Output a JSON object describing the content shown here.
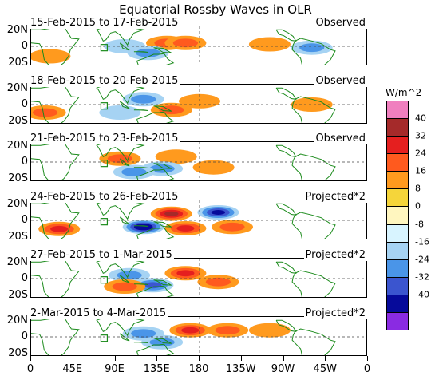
{
  "title": "Equatorial Rossby Waves in OLR",
  "units": "W/m^2",
  "panels": [
    {
      "date_label": "15-Feb-2015 to 17-Feb-2015",
      "type_label": "Observed"
    },
    {
      "date_label": "18-Feb-2015 to 20-Feb-2015",
      "type_label": "Observed"
    },
    {
      "date_label": "21-Feb-2015 to 23-Feb-2015",
      "type_label": "Observed"
    },
    {
      "date_label": "24-Feb-2015 to 26-Feb-2015",
      "type_label": "Projected*2"
    },
    {
      "date_label": "27-Feb-2015 to 1-Mar-2015",
      "type_label": "Projected*2"
    },
    {
      "date_label": "2-Mar-2015 to 4-Mar-2015",
      "type_label": "Projected*2"
    }
  ],
  "lat_labels": [
    "20N",
    "0",
    "20S"
  ],
  "lon_labels": [
    "0",
    "45E",
    "90E",
    "135E",
    "180",
    "135W",
    "90W",
    "45W",
    "0"
  ],
  "colorbar": {
    "labels": [
      "40",
      "32",
      "24",
      "16",
      "8",
      "0",
      "-8",
      "-16",
      "-24",
      "-32",
      "-40"
    ],
    "colors": [
      "#f07fbf",
      "#a52a2a",
      "#e51f1f",
      "#ff5a1e",
      "#ff9a1e",
      "#f5d53a",
      "#fff6bf",
      "#d8f4ff",
      "#a6d3f3",
      "#4a95e8",
      "#3b55cf",
      "#060a9a",
      "#8a2be2"
    ]
  },
  "chart_data": {
    "type": "heatmap",
    "title": "Equatorial Rossby Waves in OLR",
    "x_ticks": [
      "0",
      "45E",
      "90E",
      "135E",
      "180",
      "135W",
      "90W",
      "45W",
      "0"
    ],
    "y_ticks": [
      "20N",
      "0",
      "20S"
    ],
    "colorbar_units": "W/m^2",
    "colorbar_levels": [
      40,
      32,
      24,
      16,
      8,
      0,
      -8,
      -16,
      -24,
      -32,
      -40
    ],
    "panels": [
      {
        "period": "15-Feb-2015 to 17-Feb-2015",
        "kind": "Observed",
        "anomalies": [
          {
            "lon": 145,
            "lat": 5,
            "value": 20
          },
          {
            "lon": 165,
            "lat": 5,
            "value": 16
          },
          {
            "lon": 100,
            "lat": 0,
            "value": -12
          },
          {
            "lon": 125,
            "lat": -10,
            "value": -20
          },
          {
            "lon": 20,
            "lat": -15,
            "value": 12
          },
          {
            "lon": 300,
            "lat": -2,
            "value": -16
          },
          {
            "lon": 255,
            "lat": 3,
            "value": 8
          }
        ]
      },
      {
        "period": "18-Feb-2015 to 20-Feb-2015",
        "kind": "Observed",
        "anomalies": [
          {
            "lon": 150,
            "lat": -8,
            "value": 16
          },
          {
            "lon": 120,
            "lat": 8,
            "value": -16
          },
          {
            "lon": 95,
            "lat": -12,
            "value": -12
          },
          {
            "lon": 180,
            "lat": 5,
            "value": 8
          },
          {
            "lon": 300,
            "lat": 0,
            "value": 12
          },
          {
            "lon": 15,
            "lat": -12,
            "value": 16
          }
        ]
      },
      {
        "period": "21-Feb-2015 to 23-Feb-2015",
        "kind": "Observed",
        "anomalies": [
          {
            "lon": 155,
            "lat": 8,
            "value": 12
          },
          {
            "lon": 140,
            "lat": -10,
            "value": -20
          },
          {
            "lon": 95,
            "lat": 5,
            "value": 16
          },
          {
            "lon": 195,
            "lat": -8,
            "value": 8
          },
          {
            "lon": 110,
            "lat": -15,
            "value": -16
          }
        ]
      },
      {
        "period": "24-Feb-2015 to 26-Feb-2015",
        "kind": "Projected*2",
        "anomalies": [
          {
            "lon": 150,
            "lat": 10,
            "value": 32
          },
          {
            "lon": 120,
            "lat": -10,
            "value": -40
          },
          {
            "lon": 165,
            "lat": -12,
            "value": 28
          },
          {
            "lon": 200,
            "lat": 12,
            "value": -36
          },
          {
            "lon": 30,
            "lat": -13,
            "value": 24
          },
          {
            "lon": 215,
            "lat": -10,
            "value": 20
          }
        ]
      },
      {
        "period": "27-Feb-2015 to 1-Mar-2015",
        "kind": "Projected*2",
        "anomalies": [
          {
            "lon": 165,
            "lat": 8,
            "value": 28
          },
          {
            "lon": 130,
            "lat": -10,
            "value": -24
          },
          {
            "lon": 105,
            "lat": 5,
            "value": -20
          },
          {
            "lon": 200,
            "lat": -5,
            "value": 16
          },
          {
            "lon": 100,
            "lat": -12,
            "value": 20
          }
        ]
      },
      {
        "period": "2-Mar-2015 to 4-Mar-2015",
        "kind": "Projected*2",
        "anomalies": [
          {
            "lon": 170,
            "lat": 10,
            "value": 24
          },
          {
            "lon": 140,
            "lat": -8,
            "value": -20
          },
          {
            "lon": 120,
            "lat": 5,
            "value": -16
          },
          {
            "lon": 210,
            "lat": 10,
            "value": 16
          },
          {
            "lon": 255,
            "lat": 10,
            "value": 12
          }
        ]
      }
    ]
  }
}
